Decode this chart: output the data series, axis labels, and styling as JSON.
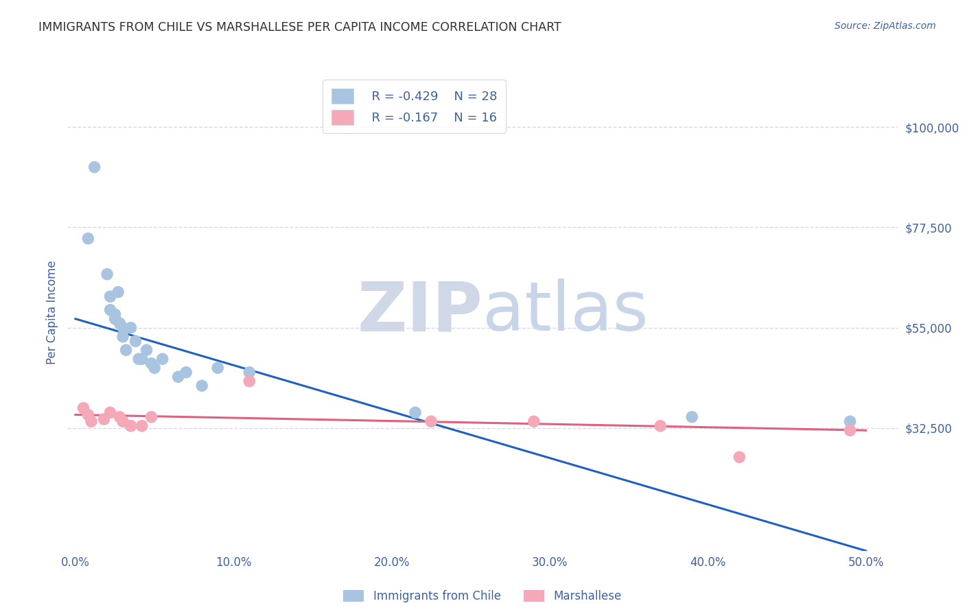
{
  "title": "IMMIGRANTS FROM CHILE VS MARSHALLESE PER CAPITA INCOME CORRELATION CHART",
  "source": "Source: ZipAtlas.com",
  "ylabel": "Per Capita Income",
  "xlabel_ticks": [
    "0.0%",
    "",
    "",
    "",
    "",
    "",
    "",
    "",
    "",
    "",
    "10.0%",
    "",
    "",
    "",
    "",
    "",
    "",
    "",
    "",
    "",
    "20.0%",
    "",
    "",
    "",
    "",
    "",
    "",
    "",
    "",
    "",
    "30.0%",
    "",
    "",
    "",
    "",
    "",
    "",
    "",
    "",
    "",
    "40.0%",
    "",
    "",
    "",
    "",
    "",
    "",
    "",
    "",
    "",
    "50.0%"
  ],
  "xlabel_vals": [
    0.0,
    0.1,
    0.2,
    0.3,
    0.4,
    0.5
  ],
  "xlabel_display": [
    "0.0%",
    "10.0%",
    "20.0%",
    "30.0%",
    "40.0%",
    "50.0%"
  ],
  "ytick_labels": [
    "$100,000",
    "$77,500",
    "$55,000",
    "$32,500"
  ],
  "ytick_vals": [
    100000,
    77500,
    55000,
    32500
  ],
  "ylim": [
    5000,
    112000
  ],
  "xlim": [
    -0.005,
    0.52
  ],
  "chile_R": -0.429,
  "chile_N": 28,
  "marsh_R": -0.167,
  "marsh_N": 16,
  "chile_color": "#a8c4e0",
  "marsh_color": "#f4a8b8",
  "chile_line_color": "#2060c0",
  "marsh_line_color": "#e06080",
  "watermark_zip": "ZIP",
  "watermark_atlas": "atlas",
  "watermark_color": "#d0d8e8",
  "axis_label_color": "#4060a0",
  "title_color": "#303030",
  "grid_color": "#d8d8e8",
  "background_color": "#ffffff",
  "chile_x": [
    0.012,
    0.02,
    0.022,
    0.022,
    0.025,
    0.025,
    0.027,
    0.028,
    0.03,
    0.03,
    0.032,
    0.035,
    0.038,
    0.04,
    0.042,
    0.045,
    0.048,
    0.05,
    0.055,
    0.065,
    0.07,
    0.08,
    0.09,
    0.11,
    0.215,
    0.39,
    0.49,
    0.008
  ],
  "chile_y": [
    91000,
    67000,
    62000,
    59000,
    58000,
    57000,
    63000,
    56000,
    55000,
    53000,
    50000,
    55000,
    52000,
    48000,
    48000,
    50000,
    47000,
    46000,
    48000,
    44000,
    45000,
    42000,
    46000,
    45000,
    36000,
    35000,
    34000,
    75000
  ],
  "marsh_x": [
    0.005,
    0.008,
    0.01,
    0.018,
    0.022,
    0.028,
    0.03,
    0.035,
    0.042,
    0.048,
    0.11,
    0.225,
    0.29,
    0.37,
    0.42,
    0.49
  ],
  "marsh_y": [
    37000,
    35500,
    34000,
    34500,
    36000,
    35000,
    34000,
    33000,
    33000,
    35000,
    43000,
    34000,
    34000,
    33000,
    26000,
    32000
  ],
  "chile_line_x0": 0.0,
  "chile_line_y0": 57000,
  "chile_line_x1": 0.5,
  "chile_line_y1": 5000,
  "marsh_line_x0": 0.0,
  "marsh_line_y0": 35500,
  "marsh_line_x1": 0.5,
  "marsh_line_y1": 32000
}
